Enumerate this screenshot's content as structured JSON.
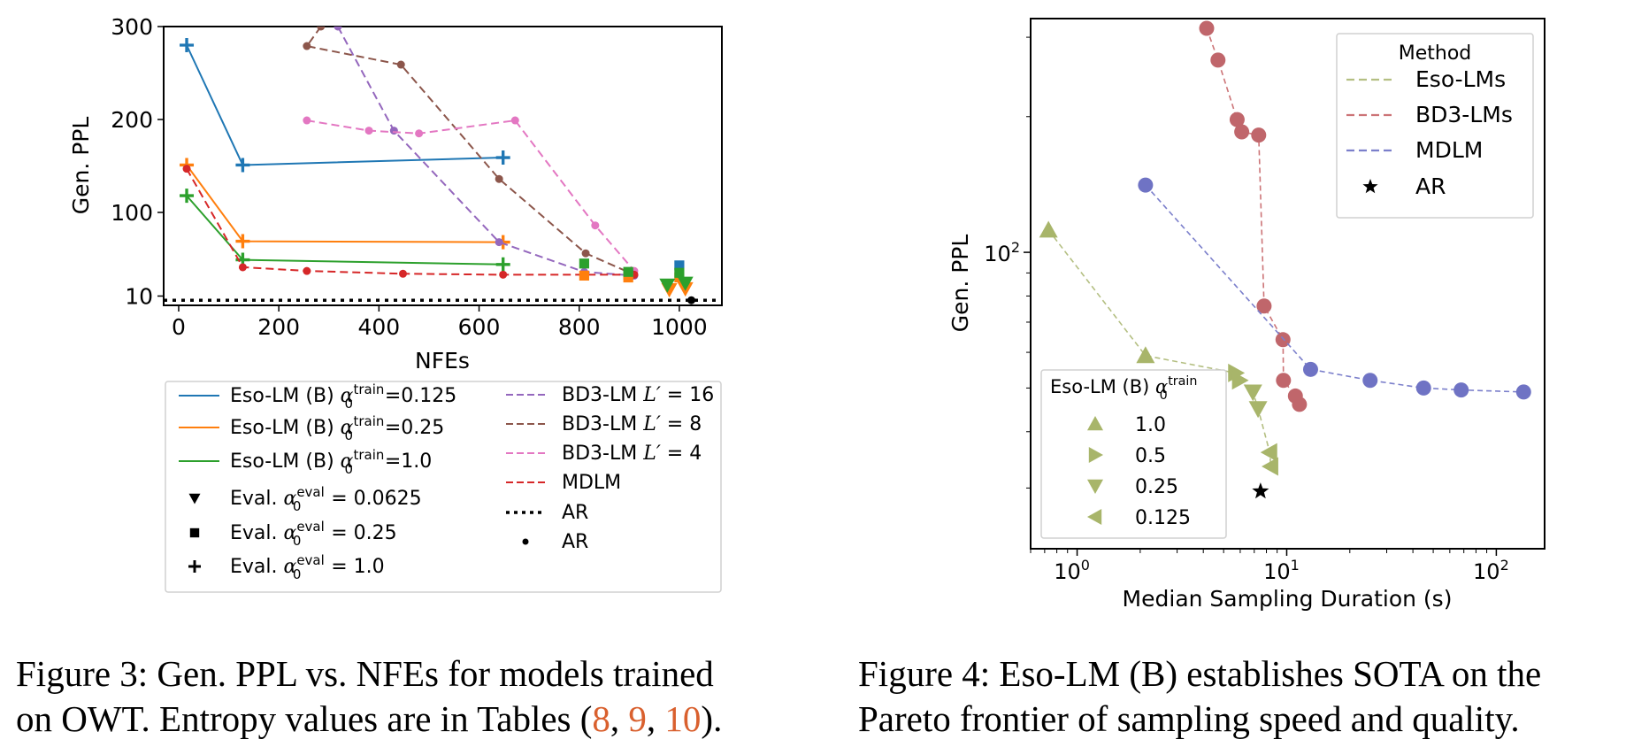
{
  "figures": {
    "left": {
      "caption_line1": "Figure 3: Gen. PPL vs. NFEs for models trained",
      "caption_line2_prefix": "on OWT. Entropy values are in Tables (",
      "caption_refs": [
        "8",
        "9",
        "10"
      ],
      "caption_line2_suffix": ")."
    },
    "right": {
      "caption_line1": "Figure 4: Eso-LM (B) establishes SOTA on the",
      "caption_line2": "Pareto frontier of sampling speed and quality."
    }
  },
  "chart_data": [
    {
      "type": "line",
      "xlabel": "NFEs",
      "ylabel": "Gen. PPL",
      "xlim": [
        -30,
        1085
      ],
      "ylim": [
        0,
        300
      ],
      "xticks": [
        0,
        200,
        400,
        600,
        800,
        1000
      ],
      "yticks": [
        10,
        100,
        200,
        300
      ],
      "grid": false,
      "legend_position": "below",
      "series": [
        {
          "name": "Eso-LM (B) α0train=0.125",
          "legend_main": "Eso-LM (B) ",
          "legend_sym": "α",
          "legend_sub": "0",
          "legend_sup": "train",
          "legend_tail": "=0.125",
          "color": "#1f77b4",
          "dash": "solid",
          "marker": "plus",
          "x": [
            16,
            128,
            648
          ],
          "y": [
            280,
            151,
            159
          ]
        },
        {
          "name": "Eso-LM (B) α0train=0.25",
          "legend_main": "Eso-LM (B) ",
          "legend_sym": "α",
          "legend_sub": "0",
          "legend_sup": "train",
          "legend_tail": "=0.25",
          "color": "#ff7f0e",
          "dash": "solid",
          "marker": "plus",
          "x": [
            16,
            128,
            648
          ],
          "y": [
            151,
            69,
            68
          ]
        },
        {
          "name": "Eso-LM (B) α0train=1.0",
          "legend_main": "Eso-LM (B) ",
          "legend_sym": "α",
          "legend_sub": "0",
          "legend_sup": "train",
          "legend_tail": "=1.0",
          "color": "#2ca02c",
          "dash": "solid",
          "marker": "plus",
          "x": [
            16,
            128,
            648
          ],
          "y": [
            118,
            49,
            44
          ]
        },
        {
          "name": "BD3-LM L′ = 16",
          "legend_main": "BD3-LM ",
          "legend_sym": "L′",
          "legend_tail": " = 16",
          "color": "#9467bd",
          "dash": "dashed",
          "marker": "dot",
          "x": [
            318,
            430,
            640,
            810,
            910
          ],
          "y": [
            300,
            188,
            68,
            36,
            32
          ]
        },
        {
          "name": "BD3-LM L′ = 8",
          "legend_main": "BD3-LM ",
          "legend_sym": "L′",
          "legend_tail": " = 8",
          "color": "#8c564b",
          "dash": "dashed",
          "marker": "dot",
          "x": [
            284,
            256,
            444,
            640,
            813,
            910
          ],
          "y": [
            300,
            279,
            259,
            136,
            56,
            33
          ]
        },
        {
          "name": "BD3-LM L′ = 4",
          "legend_main": "BD3-LM ",
          "legend_sym": "L′",
          "legend_tail": " = 4",
          "color": "#e377c2",
          "dash": "dashed",
          "marker": "dot",
          "x": [
            256,
            380,
            480,
            672,
            832,
            910
          ],
          "y": [
            199,
            188,
            185,
            199,
            86,
            37
          ]
        },
        {
          "name": "MDLM",
          "legend_main": "MDLM",
          "color": "#d62728",
          "dash": "dashed",
          "marker": "dot",
          "x": [
            16,
            128,
            256,
            448,
            648,
            910
          ],
          "y": [
            147,
            41,
            37,
            34,
            33,
            33
          ]
        },
        {
          "name": "AR",
          "legend_main": "AR",
          "color": "#000000",
          "dash": "dotted",
          "marker": "none",
          "x": [
            -30,
            1085
          ],
          "y": [
            5.5,
            5.5
          ]
        },
        {
          "name": "AR",
          "legend_main": "AR",
          "color": "#000000",
          "dash": "none",
          "marker": "dot",
          "x": [
            1024
          ],
          "y": [
            5.5
          ]
        }
      ],
      "eval_markers": [
        {
          "series": "Eso-LM (B) α0train=0.125",
          "color": "#1f77b4",
          "points": [
            {
              "x": 1000,
              "y": 43,
              "marker": "square"
            },
            {
              "x": 898,
              "y": 33,
              "marker": "square"
            }
          ]
        },
        {
          "series": "Eso-LM (B) α0train=0.25",
          "color": "#ff7f0e",
          "points": [
            {
              "x": 810,
              "y": 32,
              "marker": "square"
            },
            {
              "x": 898,
              "y": 30,
              "marker": "square"
            },
            {
              "x": 1000,
              "y": 30,
              "marker": "square"
            },
            {
              "x": 1012,
              "y": 18,
              "marker": "tri-down"
            },
            {
              "x": 980,
              "y": 17,
              "marker": "tri-down"
            }
          ]
        },
        {
          "series": "Eso-LM (B) α0train=1.0",
          "color": "#2ca02c",
          "points": [
            {
              "x": 810,
              "y": 45,
              "marker": "square"
            },
            {
              "x": 898,
              "y": 36,
              "marker": "square"
            },
            {
              "x": 1000,
              "y": 35,
              "marker": "square"
            },
            {
              "x": 1012,
              "y": 24,
              "marker": "tri-down"
            },
            {
              "x": 976,
              "y": 22,
              "marker": "tri-down"
            }
          ]
        }
      ],
      "marker_legend": [
        {
          "label_pre": "Eval. ",
          "sym": "α",
          "sub": "0",
          "sup": "eval",
          "tail": " = 0.0625",
          "marker": "tri-down"
        },
        {
          "label_pre": "Eval. ",
          "sym": "α",
          "sub": "0",
          "sup": "eval",
          "tail": " = 0.25",
          "marker": "square"
        },
        {
          "label_pre": "Eval. ",
          "sym": "α",
          "sub": "0",
          "sup": "eval",
          "tail": " = 1.0",
          "marker": "plus"
        }
      ]
    },
    {
      "type": "scatter",
      "xlabel": "Median Sampling Duration (s)",
      "ylabel": "Gen. PPL",
      "xscale": "log",
      "yscale": "log",
      "xlim": [
        0.6,
        170
      ],
      "ylim": [
        22,
        330
      ],
      "xticks": [
        "10^0",
        "10^1",
        "10^2"
      ],
      "yticks": [
        "10^2"
      ],
      "grid": false,
      "legend_method_title": "Method",
      "legend_method_position": "top-right",
      "legend_eso_title_main": "Eso-LM (B) ",
      "legend_eso_title_sym": "α",
      "legend_eso_title_sub": "0",
      "legend_eso_title_sup": "train",
      "legend_eso_position": "lower-left",
      "series": [
        {
          "name": "Eso-LMs",
          "color": "#a8b56a",
          "line_color": "#b4bf82",
          "points": [
            {
              "x": 0.73,
              "y": 112,
              "marker": "tri-up"
            },
            {
              "x": 2.12,
              "y": 59,
              "marker": "tri-up"
            },
            {
              "x": 5.7,
              "y": 54,
              "marker": "tri-right"
            },
            {
              "x": 5.95,
              "y": 52,
              "marker": "tri-right"
            },
            {
              "x": 6.9,
              "y": 49,
              "marker": "tri-down"
            },
            {
              "x": 7.3,
              "y": 45,
              "marker": "tri-down"
            },
            {
              "x": 8.3,
              "y": 36,
              "marker": "tri-left"
            },
            {
              "x": 8.4,
              "y": 33.5,
              "marker": "tri-left"
            }
          ]
        },
        {
          "name": "BD3-LMs",
          "color": "#c0666b",
          "line_color": "#cc7477",
          "points": [
            {
              "x": 4.15,
              "y": 314
            },
            {
              "x": 4.7,
              "y": 267
            },
            {
              "x": 5.8,
              "y": 197
            },
            {
              "x": 6.1,
              "y": 185
            },
            {
              "x": 7.35,
              "y": 182
            },
            {
              "x": 7.8,
              "y": 76
            },
            {
              "x": 9.6,
              "y": 64
            },
            {
              "x": 9.65,
              "y": 52
            },
            {
              "x": 11.0,
              "y": 48
            },
            {
              "x": 11.5,
              "y": 46
            }
          ]
        },
        {
          "name": "MDLM",
          "color": "#6f73c4",
          "line_color": "#7b7fcb",
          "points": [
            {
              "x": 2.12,
              "y": 141
            },
            {
              "x": 13.0,
              "y": 55
            },
            {
              "x": 25.0,
              "y": 52
            },
            {
              "x": 45.0,
              "y": 50
            },
            {
              "x": 68.0,
              "y": 49.5
            },
            {
              "x": 135.0,
              "y": 49
            }
          ]
        },
        {
          "name": "AR",
          "color": "#000000",
          "points": [
            {
              "x": 7.5,
              "y": 29.5,
              "marker": "star"
            }
          ]
        }
      ],
      "method_legend": [
        {
          "label": "Eso-LMs",
          "color": "#b4bf82",
          "marker": "dash-line"
        },
        {
          "label": "BD3-LMs",
          "color": "#cc7477",
          "marker": "dash-line"
        },
        {
          "label": "MDLM",
          "color": "#7b7fcb",
          "marker": "dash-line"
        },
        {
          "label": "AR",
          "color": "#000000",
          "marker": "star"
        }
      ],
      "eso_legend": [
        {
          "label": "1.0",
          "marker": "tri-up"
        },
        {
          "label": "0.5",
          "marker": "tri-right"
        },
        {
          "label": "0.25",
          "marker": "tri-down"
        },
        {
          "label": "0.125",
          "marker": "tri-left"
        }
      ]
    }
  ]
}
